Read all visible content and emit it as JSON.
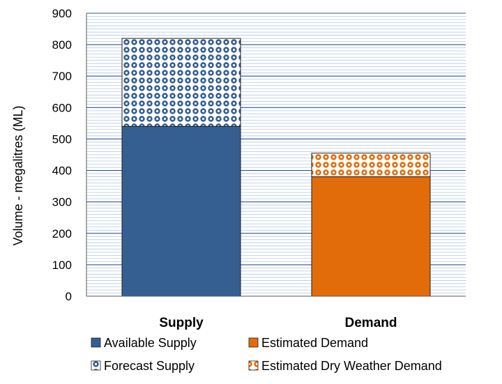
{
  "chart_data": {
    "type": "bar",
    "stacked": true,
    "categories": [
      "Supply",
      "Demand"
    ],
    "ylabel": "Volume - megalitres (ML)",
    "xlabel": "",
    "ylim": [
      0,
      900
    ],
    "yticks": [
      0,
      100,
      200,
      300,
      400,
      500,
      600,
      700,
      800,
      900
    ],
    "grid": true,
    "legend_position": "bottom",
    "series": [
      {
        "name": "Available Supply",
        "category": "Supply",
        "base": 0,
        "value": 540,
        "color": "#365f91",
        "pattern": "solid"
      },
      {
        "name": "Forecast Supply",
        "category": "Supply",
        "base": 540,
        "value": 280,
        "color": "#365f91",
        "pattern": "dots"
      },
      {
        "name": "Estimated Demand",
        "category": "Demand",
        "base": 0,
        "value": 380,
        "color": "#e36c0a",
        "pattern": "solid"
      },
      {
        "name": "Estimated Dry Weather Demand",
        "category": "Demand",
        "base": 380,
        "value": 75,
        "color": "#e36c0a",
        "pattern": "dots"
      }
    ]
  }
}
